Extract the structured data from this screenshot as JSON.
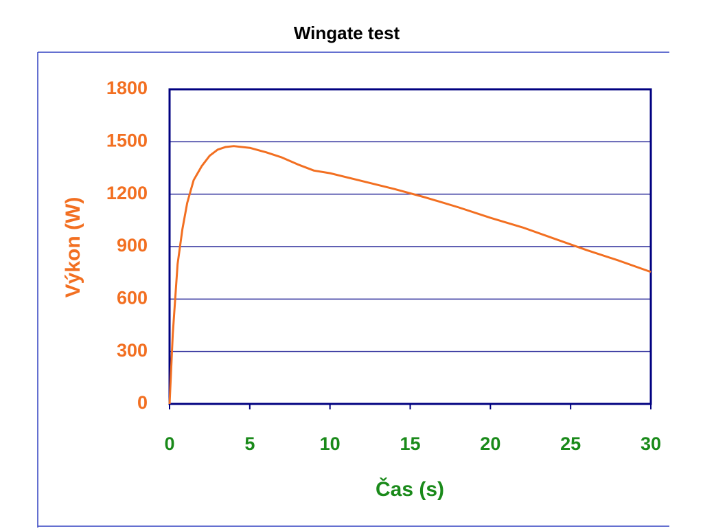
{
  "chart_data": {
    "type": "line",
    "title": "Wingate test",
    "x_label": "Čas (s)",
    "y_label": "Výkon (W)",
    "xlim": [
      0,
      30
    ],
    "xticks": [
      0,
      5,
      10,
      15,
      20,
      25,
      30
    ],
    "ylim": [
      0,
      1800
    ],
    "yticks": [
      0,
      300,
      600,
      900,
      1200,
      1500,
      1800
    ],
    "grid": true,
    "series": [
      {
        "color": "#f26f21",
        "x": [
          0,
          0.2,
          0.5,
          0.8,
          1.1,
          1.5,
          2,
          2.5,
          3,
          3.5,
          4,
          5,
          6,
          7,
          8,
          9,
          10,
          12,
          14,
          16,
          18,
          20,
          22,
          24,
          26,
          28,
          30
        ],
        "values": [
          0,
          400,
          800,
          1000,
          1150,
          1280,
          1360,
          1420,
          1455,
          1470,
          1475,
          1465,
          1440,
          1410,
          1370,
          1335,
          1320,
          1275,
          1230,
          1180,
          1125,
          1065,
          1010,
          945,
          880,
          820,
          755
        ]
      }
    ]
  }
}
